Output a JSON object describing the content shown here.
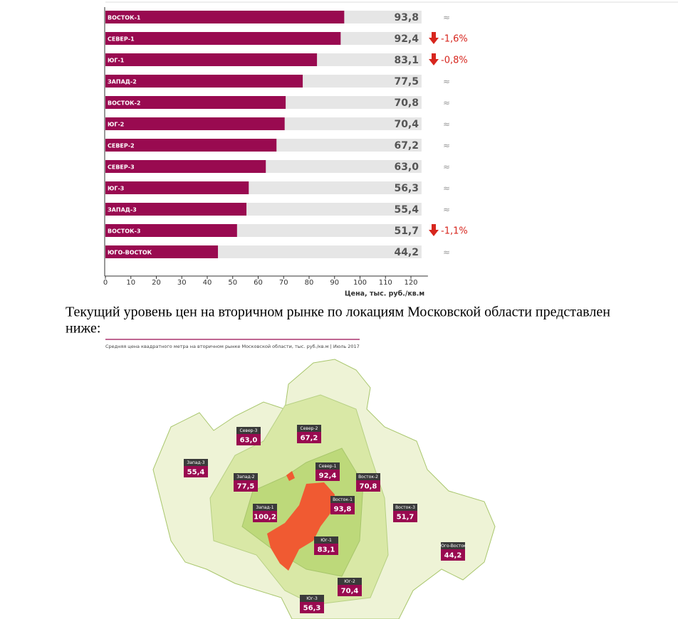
{
  "chart_data": {
    "type": "bar",
    "orientation": "horizontal",
    "categories": [
      "ВОСТОК-1",
      "СЕВЕР-1",
      "ЮГ-1",
      "ЗАПАД-2",
      "ВОСТОК-2",
      "ЮГ-2",
      "СЕВЕР-2",
      "СЕВЕР-3",
      "ЮГ-3",
      "ЗАПАД-3",
      "ВОСТОК-3",
      "ЮГО-ВОСТОК"
    ],
    "values": [
      93.8,
      92.4,
      83.1,
      77.5,
      70.8,
      70.4,
      67.2,
      63.0,
      56.3,
      55.4,
      51.7,
      44.2
    ],
    "value_labels": [
      "93,8",
      "92,4",
      "83,1",
      "77,5",
      "70,8",
      "70,4",
      "67,2",
      "63,0",
      "56,3",
      "55,4",
      "51,7",
      "44,2"
    ],
    "annotations": [
      "≈",
      "-1,6%",
      "-0,8%",
      "≈",
      "≈",
      "≈",
      "≈",
      "≈",
      "≈",
      "≈",
      "-1,1%",
      "≈"
    ],
    "color": "#990a50",
    "xlim": [
      0,
      125
    ],
    "xticks": [
      0,
      10,
      20,
      30,
      40,
      50,
      60,
      70,
      80,
      90,
      100,
      110,
      120
    ],
    "x_label": "Цена, тыс. руб./кв.м"
  },
  "paragraph": [
    "Текущий уровень цен на вторичном рынке по локациям Московской области представлен",
    "ниже:"
  ],
  "map": {
    "caption": "Средняя цена квадратного метра на вторичном рынке Московской области, тыс. руб./кв.м | Июль 2017",
    "regions": [
      {
        "name": "Север-3",
        "value": "63,0"
      },
      {
        "name": "Север-2",
        "value": "67,2"
      },
      {
        "name": "Запад-3",
        "value": "55,4"
      },
      {
        "name": "Север-1",
        "value": "92,4"
      },
      {
        "name": "Восток-2",
        "value": "70,8"
      },
      {
        "name": "Запад-2",
        "value": "77,5"
      },
      {
        "name": "Запад-1",
        "value": "100,2"
      },
      {
        "name": "Восток-1",
        "value": "93,8"
      },
      {
        "name": "Восток-3",
        "value": "51,7"
      },
      {
        "name": "Юго-Восток",
        "value": "44,2"
      },
      {
        "name": "Юг-1",
        "value": "83,1"
      },
      {
        "name": "Юг-2",
        "value": "70,4"
      },
      {
        "name": "Юг-3",
        "value": "56,3"
      }
    ]
  }
}
